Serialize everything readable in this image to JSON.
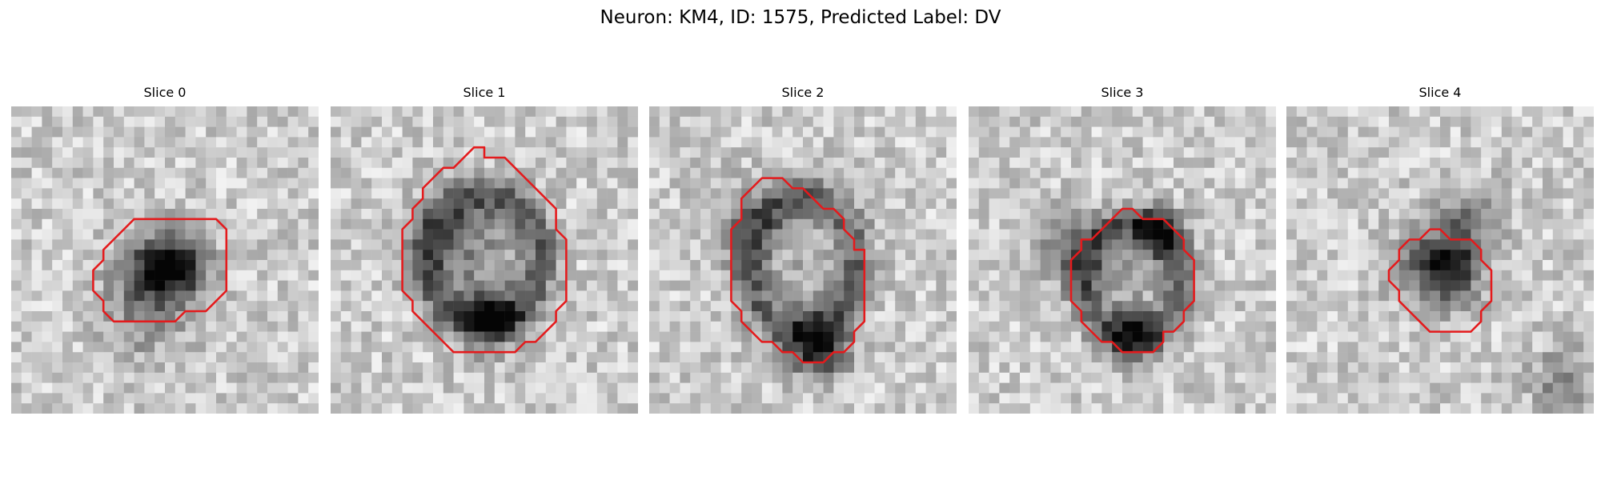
{
  "figure": {
    "title": "Neuron: KM4, ID: 1575, Predicted Label: DV"
  },
  "panels": [
    {
      "title": "Slice 0"
    },
    {
      "title": "Slice 1"
    },
    {
      "title": "Slice 2"
    },
    {
      "title": "Slice 3"
    },
    {
      "title": "Slice 4"
    }
  ],
  "colors": {
    "contour": "#e41a1c",
    "background": "#ffffff"
  }
}
